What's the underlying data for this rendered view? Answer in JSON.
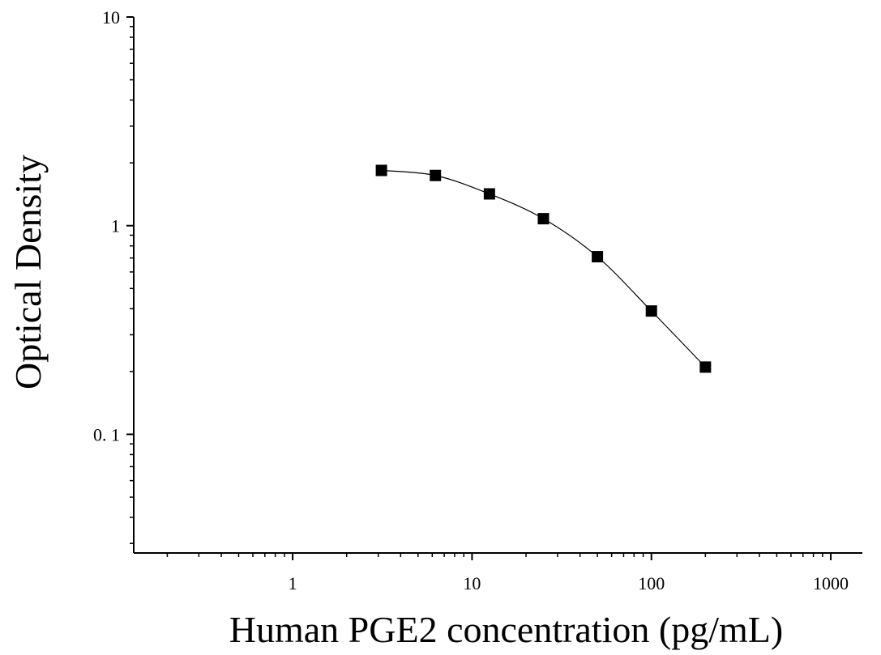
{
  "chart_data": {
    "type": "scatter",
    "title": "",
    "xlabel": "Human PGE2 concentration (pg/mL)",
    "ylabel": "Optical Density",
    "xscale": "log",
    "yscale": "log",
    "xlim": [
      0.13,
      1500
    ],
    "ylim": [
      0.027,
      10
    ],
    "x_ticks": [
      {
        "value": 1,
        "label": "1"
      },
      {
        "value": 10,
        "label": "10"
      },
      {
        "value": 100,
        "label": "100"
      },
      {
        "value": 1000,
        "label": "1000"
      }
    ],
    "y_ticks": [
      {
        "value": 10,
        "label": "10"
      },
      {
        "value": 1,
        "label": "1"
      },
      {
        "value": 0.1,
        "label": "0. 1"
      }
    ],
    "grid": false,
    "legend": "none",
    "marker": "square",
    "series": [
      {
        "x": [
          3.125,
          6.25,
          12.5,
          25,
          50,
          100,
          200
        ],
        "y": [
          1.84,
          1.74,
          1.42,
          1.08,
          0.71,
          0.39,
          0.21
        ]
      }
    ],
    "fit_curve": true,
    "colors": {
      "marker": "#000000",
      "line": "#000000",
      "axis": "#000000"
    }
  }
}
